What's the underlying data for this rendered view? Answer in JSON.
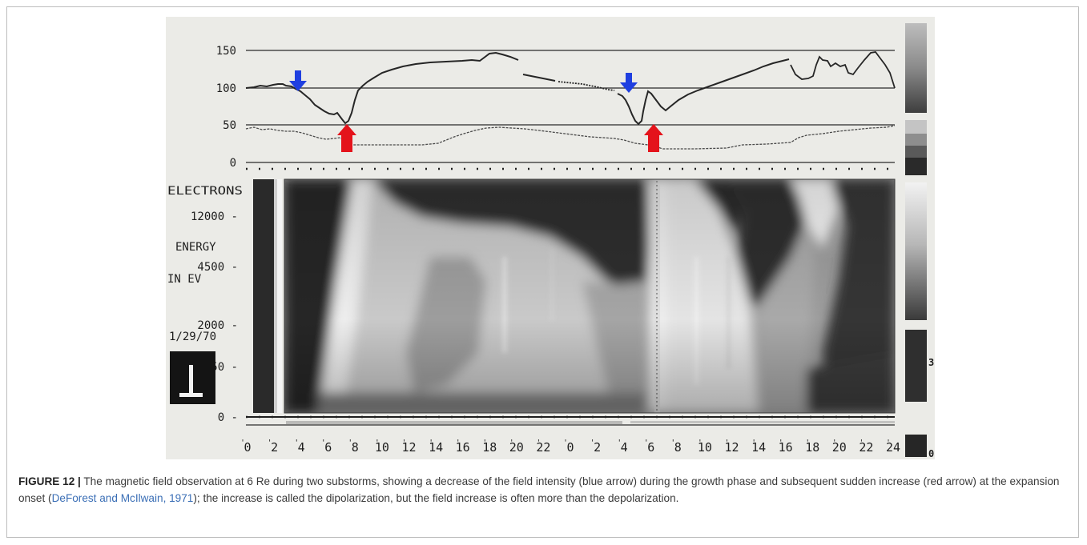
{
  "figure": {
    "top_panel": {
      "y_ticks": [
        "150",
        "100",
        "50",
        "0"
      ],
      "y_values": [
        150,
        100,
        50,
        0
      ],
      "blue_arrows_hours": [
        3.0,
        27.4
      ],
      "red_arrows_hours": [
        7.3,
        29.7
      ]
    },
    "spectrogram": {
      "title_line1": "ELECTRONS",
      "energy_label_line1": "ENERGY",
      "energy_label_line2": "IN EV",
      "date": "1/29/70",
      "energy_ticks": [
        "12000 -",
        "4500 -",
        "2000 -",
        "750 -",
        "0 -"
      ],
      "right_ticks": [
        "3",
        "0"
      ]
    },
    "x_axis": {
      "ticks": [
        "0",
        "2",
        "4",
        "6",
        "8",
        "10",
        "12",
        "14",
        "16",
        "18",
        "20",
        "22",
        "0",
        "2",
        "4",
        "6",
        "8",
        "10",
        "12",
        "14",
        "16",
        "18",
        "20",
        "22",
        "24"
      ]
    },
    "colors": {
      "paper": "#ebebe7",
      "trace": "#262626",
      "blue_arrow": "#1f3fe0",
      "red_arrow": "#e4131b"
    }
  },
  "caption": {
    "label": "FIGURE 12 |",
    "text_before_citation": " The magnetic field observation at 6 Re during two substorms, showing a decrease of the field intensity (blue arrow) during the growth phase and subsequent sudden increase (red arrow) at the expansion onset (",
    "citation": "DeForest and McIlwain, 1971",
    "text_after_citation": "); the increase is called the dipolarization, but the field increase is often more than the depolarization."
  }
}
